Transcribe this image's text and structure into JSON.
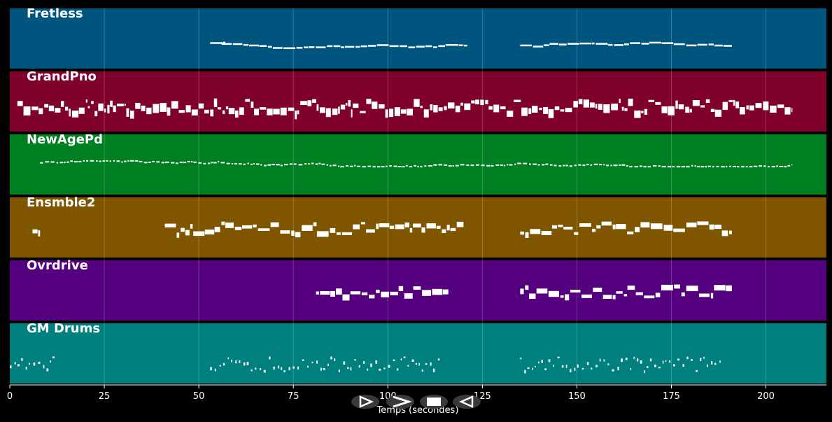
{
  "chart_data": {
    "type": "piano-roll",
    "xlabel": "Temps (secondes)",
    "xlim": [
      0,
      216
    ],
    "xticks": [
      0,
      25,
      50,
      75,
      100,
      125,
      150,
      175,
      200
    ],
    "grid": true,
    "tracks": [
      {
        "name": "Fretless",
        "color": "#00557f",
        "style": "melody",
        "phrases": [
          [
            53,
            57
          ],
          [
            56,
            121
          ],
          [
            135,
            191
          ]
        ]
      },
      {
        "name": "GrandPno",
        "color": "#7f002a",
        "style": "dense",
        "phrases": [
          [
            2,
            207
          ]
        ]
      },
      {
        "name": "NewAgePd",
        "color": "#007f22",
        "style": "sparse",
        "phrases": [
          [
            8,
            207
          ]
        ]
      },
      {
        "name": "Ensmble2",
        "color": "#7f5500",
        "style": "blocks",
        "phrases": [
          [
            6,
            8
          ],
          [
            41,
            120
          ],
          [
            135,
            191
          ]
        ]
      },
      {
        "name": "Ovrdrive",
        "color": "#55007f",
        "style": "blocks",
        "phrases": [
          [
            81,
            116
          ],
          [
            135,
            191
          ]
        ]
      },
      {
        "name": "GM Drums",
        "color": "#007f7f",
        "style": "drums",
        "phrases": [
          [
            0,
            12
          ],
          [
            53,
            114
          ],
          [
            135,
            188
          ]
        ]
      }
    ]
  },
  "controls": {
    "play_icon": "play-icon",
    "forward_icon": "fast-forward-icon",
    "stop_icon": "stop-icon",
    "rewind_icon": "rewind-icon"
  }
}
